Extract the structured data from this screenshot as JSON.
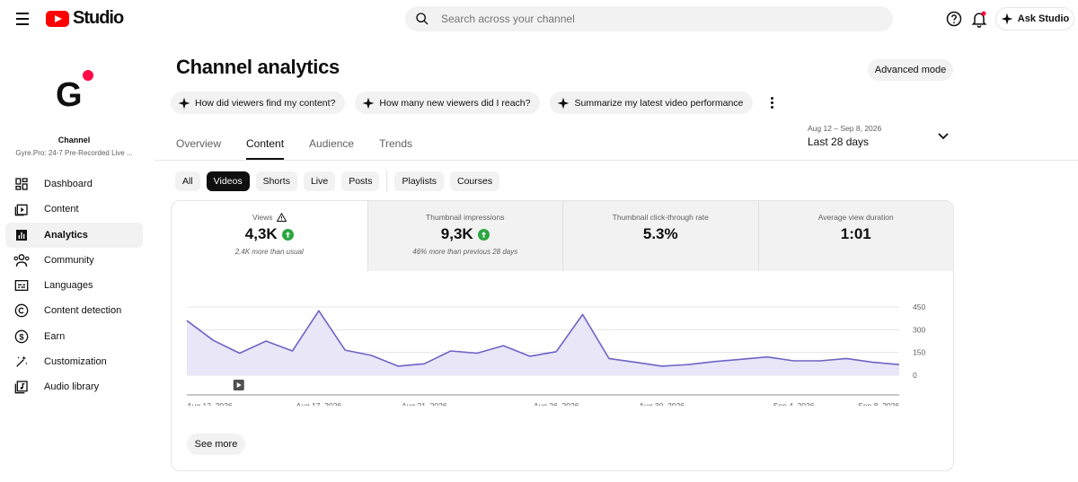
{
  "header": {
    "logo_text": "Studio",
    "search_placeholder": "Search across your channel",
    "ask_label": "Ask Studio"
  },
  "sidebar": {
    "channel_label": "Channel",
    "channel_name": "Gyre.Pro: 24-7 Pre-Recorded Live ...",
    "items": [
      {
        "label": "Dashboard",
        "icon": "dashboard-icon"
      },
      {
        "label": "Content",
        "icon": "content-icon"
      },
      {
        "label": "Analytics",
        "icon": "analytics-icon",
        "active": true
      },
      {
        "label": "Community",
        "icon": "community-icon"
      },
      {
        "label": "Languages",
        "icon": "languages-icon"
      },
      {
        "label": "Content detection",
        "icon": "copyright-icon"
      },
      {
        "label": "Earn",
        "icon": "dollar-icon"
      },
      {
        "label": "Customization",
        "icon": "magic-wand-icon"
      },
      {
        "label": "Audio library",
        "icon": "audio-library-icon"
      }
    ]
  },
  "main": {
    "title": "Channel analytics",
    "advanced_mode": "Advanced mode",
    "ai_chips": [
      "How did viewers find my content?",
      "How many new viewers did I reach?",
      "Summarize my latest video performance"
    ],
    "tabs": [
      {
        "label": "Overview"
      },
      {
        "label": "Content",
        "active": true
      },
      {
        "label": "Audience"
      },
      {
        "label": "Trends"
      }
    ],
    "date_range": {
      "sub": "Aug 12 – Sep 8, 2026",
      "main": "Last 28 days"
    },
    "filters": [
      {
        "label": "All"
      },
      {
        "label": "Videos",
        "active": true
      },
      {
        "label": "Shorts"
      },
      {
        "label": "Live"
      },
      {
        "label": "Posts"
      },
      {
        "label": "Playlists",
        "group": 2
      },
      {
        "label": "Courses",
        "group": 2
      }
    ],
    "metrics": [
      {
        "label": "Views",
        "value": "4,3K",
        "note": "2,4K more than usual",
        "up": true,
        "warn": true
      },
      {
        "label": "Thumbnail impressions",
        "value": "9,3K",
        "note": "46% more than previous 28 days",
        "up": true
      },
      {
        "label": "Thumbnail click-through rate",
        "value": "5.3%",
        "note": ""
      },
      {
        "label": "Average view duration",
        "value": "1:01",
        "note": ""
      }
    ],
    "see_more": "See more"
  },
  "colors": {
    "accent": "#065fd4",
    "line": "#6f63c6",
    "area": "#e8e6f7",
    "up_green": "#2ba640",
    "brand_red": "#ff0000"
  },
  "chart_data": {
    "type": "area",
    "x": [
      "Aug 12",
      "Aug 13",
      "Aug 14",
      "Aug 15",
      "Aug 16",
      "Aug 17",
      "Aug 18",
      "Aug 19",
      "Aug 20",
      "Aug 21",
      "Aug 22",
      "Aug 23",
      "Aug 24",
      "Aug 25",
      "Aug 26",
      "Aug 27",
      "Aug 28",
      "Aug 29",
      "Aug 30",
      "Aug 31",
      "Sep 1",
      "Sep 2",
      "Sep 3",
      "Sep 4",
      "Sep 5",
      "Sep 6",
      "Sep 7",
      "Sep 8"
    ],
    "series": [
      {
        "values": [
          360,
          230,
          145,
          225,
          160,
          425,
          165,
          130,
          60,
          75,
          160,
          145,
          195,
          125,
          155,
          400,
          110,
          85,
          60,
          70,
          90,
          105,
          120,
          95,
          95,
          110,
          85,
          70
        ]
      }
    ],
    "xticks": [
      {
        "index": 0,
        "label": "Aug 12, 2026"
      },
      {
        "index": 5,
        "label": "Aug 17, 2026"
      },
      {
        "index": 9,
        "label": "Aug 21, 2026"
      },
      {
        "index": 14,
        "label": "Aug 26, 2026"
      },
      {
        "index": 18,
        "label": "Aug 30, 2026"
      },
      {
        "index": 23,
        "label": "Sep 4, 2026"
      },
      {
        "index": 27,
        "label": "Sep 8, 2026"
      }
    ],
    "yticks": [
      0,
      150,
      300,
      450
    ],
    "ylim": [
      0,
      450
    ],
    "video_marker_index": 2,
    "grid": true
  }
}
